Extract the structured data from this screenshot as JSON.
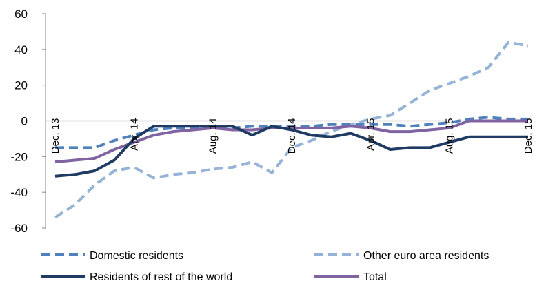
{
  "chart_data": {
    "type": "line",
    "ylim": [
      -60,
      60
    ],
    "yticks": [
      "60",
      "40",
      "20",
      "0",
      "-20",
      "-40",
      "-60"
    ],
    "ytick_values": [
      60,
      40,
      20,
      0,
      -20,
      -40,
      -60
    ],
    "x": [
      "Dec. 13",
      "Jan. 14",
      "Feb. 14",
      "Mar. 14",
      "Apr. 14",
      "May 14",
      "Jun. 14",
      "Jul. 14",
      "Aug. 14",
      "Sep. 14",
      "Oct. 14",
      "Nov. 14",
      "Dec. 14",
      "Jan. 15",
      "Feb. 15",
      "Mar. 15",
      "Apr. 15",
      "May 15",
      "Jun. 15",
      "Jul. 15",
      "Aug. 15",
      "Sep. 15",
      "Oct. 15",
      "Nov. 15",
      "Dec. 15"
    ],
    "xtick_labels": [
      {
        "index": 0,
        "label": "Dec. 13"
      },
      {
        "index": 4,
        "label": "Apr. 14"
      },
      {
        "index": 8,
        "label": "Aug. 14"
      },
      {
        "index": 12,
        "label": "Dec. 14"
      },
      {
        "index": 16,
        "label": "Apr. 15"
      },
      {
        "index": 20,
        "label": "Aug. 15"
      },
      {
        "index": 24,
        "label": "Dec. 15"
      }
    ],
    "series": [
      {
        "name": "Domestic residents",
        "color": "#4F81BD",
        "dash": "dashed",
        "values": [
          -15,
          -15,
          -15,
          -11,
          -8,
          -5,
          -4,
          -4,
          -3,
          -4,
          -3,
          -3,
          -3,
          -3,
          -2,
          -2,
          -2,
          -2,
          -3,
          -2,
          -1,
          1,
          2,
          1,
          1
        ]
      },
      {
        "name": "Other euro area residents",
        "color": "#95B3D7",
        "dash": "dashed",
        "values": [
          -54,
          -47,
          -36,
          -28,
          -26,
          -32,
          -30,
          -29,
          -27,
          -26,
          -23,
          -29,
          -15,
          -11,
          -6,
          -2,
          1,
          3,
          10,
          17,
          21,
          25,
          30,
          44,
          42
        ]
      },
      {
        "name": "Residents of rest of the world",
        "color": "#1F3B64",
        "dash": "solid",
        "values": [
          -31,
          -30,
          -28,
          -22,
          -10,
          -3,
          -3,
          -3,
          -3,
          -3,
          -8,
          -3,
          -5,
          -8,
          -9,
          -7,
          -11,
          -16,
          -15,
          -15,
          -12,
          -9,
          -9,
          -9,
          -9
        ]
      },
      {
        "name": "Total",
        "color": "#8064A2",
        "dash": "solid",
        "values": [
          -23,
          -22,
          -21,
          -16,
          -12,
          -8,
          -6,
          -5,
          -4,
          -5,
          -5,
          -4,
          -4,
          -4,
          -4,
          -3,
          -4,
          -6,
          -6,
          -5,
          -4,
          0,
          0,
          0,
          0
        ]
      }
    ],
    "legend_position": "bottom",
    "colors": {
      "axis": "#868686",
      "zero_line": "#868686"
    }
  }
}
